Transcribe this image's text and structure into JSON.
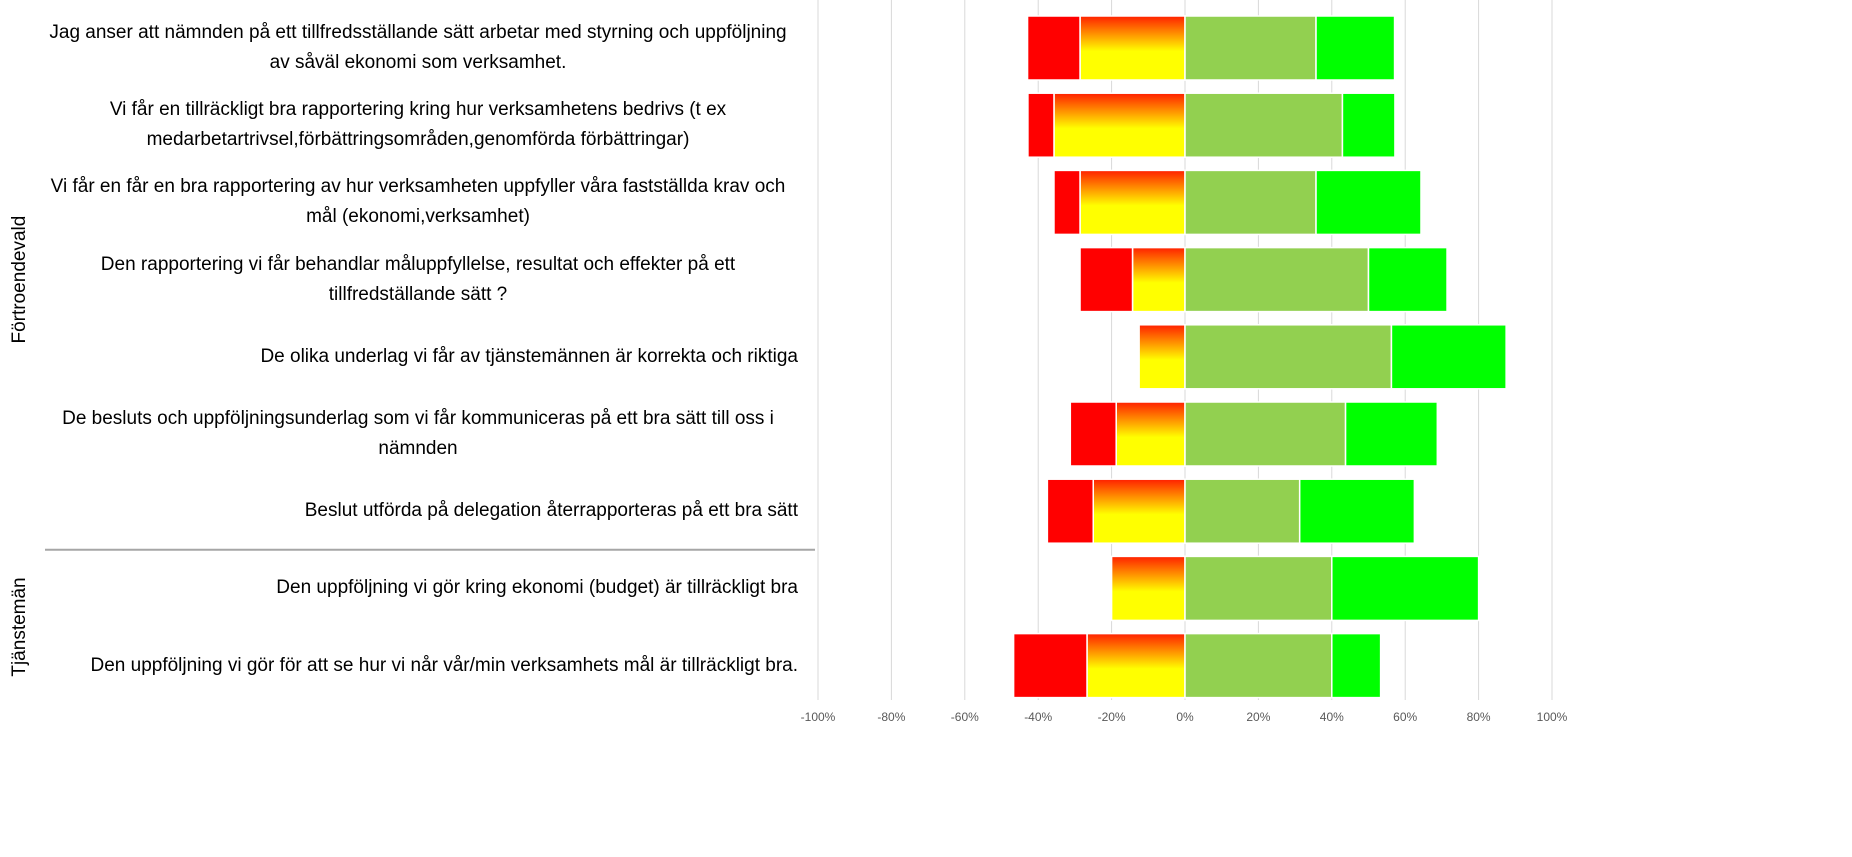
{
  "chart_data": {
    "type": "diverging_bar",
    "categories": [
      "Jag anser att nämnden på ett tillfredsställande sätt arbetar med styrning och uppföljning av såväl ekonomi som verksamhet.",
      "Vi får en tillräckligt bra rapportering kring hur verksamhetens bedrivs (t ex medarbetartrivsel,förbättringsområden,genomförda förbättringar)",
      "Vi får en får en bra rapportering av hur verksamheten uppfyller våra fastställda krav och mål (ekonomi,verksamhet)",
      "Den rapportering vi får behandlar måluppfyllelse, resultat och effekter på ett tillfredställande sätt ?",
      "De olika underlag vi får av tjänstemännen är korrekta och riktiga",
      "De besluts och uppföljningsunderlag som vi får kommuniceras på ett bra sätt till oss i nämnden",
      "Beslut utförda på delegation återrapporteras på ett bra sätt",
      "Den uppföljning vi gör kring ekonomi (budget) är tillräckligt bra",
      "Den uppföljning vi gör för att se hur vi når vår/min verksamhets mål är tillräckligt bra."
    ],
    "groups": [
      {
        "name": "Förtroendevald",
        "count": 7
      },
      {
        "name": "Tjänstemän",
        "count": 2
      }
    ],
    "series": [
      {
        "color": "#ff0000",
        "values": [
          -14.3,
          -7.1,
          -7.1,
          -14.3,
          0,
          -12.5,
          -12.5,
          0,
          -20
        ]
      },
      {
        "color": "#ffff00",
        "values": [
          -28.6,
          -35.7,
          -28.6,
          -14.3,
          -12.5,
          -18.75,
          -25,
          -20,
          -26.7
        ]
      },
      {
        "color": "#92d050",
        "values": [
          35.7,
          42.9,
          35.7,
          50,
          56.25,
          43.75,
          31.25,
          40,
          40
        ]
      },
      {
        "color": "#00ff00",
        "values": [
          21.4,
          14.3,
          28.6,
          21.4,
          31.25,
          25,
          31.25,
          40,
          13.3
        ]
      }
    ],
    "xlim": [
      -100,
      100
    ],
    "xticks": [
      {
        "value": -100,
        "label": "-100%"
      },
      {
        "value": -80,
        "label": "-80%"
      },
      {
        "value": -60,
        "label": "-60%"
      },
      {
        "value": -40,
        "label": "-40%"
      },
      {
        "value": -20,
        "label": "-20%"
      },
      {
        "value": 0,
        "label": "0%"
      },
      {
        "value": 20,
        "label": "20%"
      },
      {
        "value": 40,
        "label": "40%"
      },
      {
        "value": 60,
        "label": "60%"
      },
      {
        "value": 80,
        "label": "80%"
      },
      {
        "value": 100,
        "label": "100%"
      }
    ],
    "grid": true
  }
}
